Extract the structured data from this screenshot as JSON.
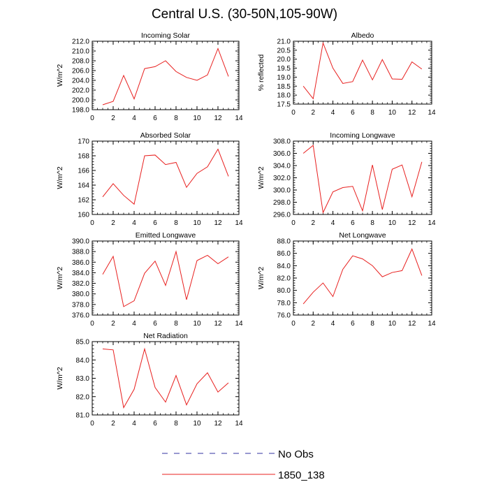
{
  "page": {
    "title": "Central U.S. (30-50N,105-90W)"
  },
  "legend": {
    "placement": "bottom-center",
    "entries": [
      {
        "label": "No Obs",
        "color": "#3232a0",
        "style": "dashed"
      },
      {
        "label": "1850_138",
        "color": "#e8201f",
        "style": "solid"
      }
    ]
  },
  "chart_data": [
    {
      "type": "line",
      "title": "Incoming Solar",
      "ylabel": "W/m^2",
      "xlim": [
        0,
        14
      ],
      "ylim": [
        198,
        212
      ],
      "xticks": [
        "0",
        "2",
        "4",
        "6",
        "8",
        "10",
        "12",
        "14"
      ],
      "yticks": [
        "198.0",
        "200.0",
        "202.0",
        "204.0",
        "206.0",
        "208.0",
        "210.0",
        "212.0"
      ],
      "x": [
        1,
        2,
        3,
        4,
        5,
        6,
        7,
        8,
        9,
        10,
        11,
        12,
        13
      ],
      "series": [
        {
          "name": "1850_138",
          "color": "#e8201f",
          "values": [
            199.0,
            199.7,
            205.0,
            200.2,
            206.4,
            206.8,
            208.0,
            205.8,
            204.6,
            204.0,
            205.1,
            210.5,
            204.8
          ]
        }
      ]
    },
    {
      "type": "line",
      "title": "Albedo",
      "ylabel": "% reflected",
      "xlim": [
        0,
        14
      ],
      "ylim": [
        17.5,
        21.0
      ],
      "xticks": [
        "0",
        "2",
        "4",
        "6",
        "8",
        "10",
        "12",
        "14"
      ],
      "yticks": [
        "17.5",
        "18.0",
        "18.5",
        "19.0",
        "19.5",
        "20.0",
        "20.5",
        "21.0"
      ],
      "x": [
        1,
        2,
        3,
        4,
        5,
        6,
        7,
        8,
        9,
        10,
        11,
        12,
        13
      ],
      "series": [
        {
          "name": "1850_138",
          "color": "#e8201f",
          "values": [
            18.5,
            17.8,
            20.9,
            19.5,
            18.65,
            18.75,
            19.95,
            18.85,
            19.98,
            18.9,
            18.88,
            19.85,
            19.45
          ]
        }
      ]
    },
    {
      "type": "line",
      "title": "Absorbed Solar",
      "ylabel": "W/m^2",
      "xlim": [
        0,
        14
      ],
      "ylim": [
        160,
        170
      ],
      "xticks": [
        "0",
        "2",
        "4",
        "6",
        "8",
        "10",
        "12",
        "14"
      ],
      "yticks": [
        "160",
        "162",
        "164",
        "166",
        "168",
        "170"
      ],
      "x": [
        1,
        2,
        3,
        4,
        5,
        6,
        7,
        8,
        9,
        10,
        11,
        12,
        13
      ],
      "series": [
        {
          "name": "1850_138",
          "color": "#e8201f",
          "values": [
            162.4,
            164.2,
            162.6,
            161.4,
            168.0,
            168.1,
            166.8,
            167.1,
            163.7,
            165.6,
            166.5,
            168.9,
            165.2
          ]
        }
      ]
    },
    {
      "type": "line",
      "title": "Incoming Longwave",
      "ylabel": "W/m^2",
      "xlim": [
        0,
        14
      ],
      "ylim": [
        296,
        308
      ],
      "xticks": [
        "0",
        "2",
        "4",
        "6",
        "8",
        "10",
        "12",
        "14"
      ],
      "yticks": [
        "296.0",
        "298.0",
        "300.0",
        "302.0",
        "304.0",
        "306.0",
        "308.0"
      ],
      "x": [
        1,
        2,
        3,
        4,
        5,
        6,
        7,
        8,
        9,
        10,
        11,
        12,
        13
      ],
      "series": [
        {
          "name": "1850_138",
          "color": "#e8201f",
          "values": [
            306.0,
            307.3,
            296.3,
            299.7,
            300.4,
            300.6,
            296.6,
            304.1,
            296.8,
            303.4,
            304.1,
            298.9,
            304.6
          ]
        }
      ]
    },
    {
      "type": "line",
      "title": "Emitted Longwave",
      "ylabel": "W/m^2",
      "xlim": [
        0,
        14
      ],
      "ylim": [
        376,
        390
      ],
      "xticks": [
        "0",
        "2",
        "4",
        "6",
        "8",
        "10",
        "12",
        "14"
      ],
      "yticks": [
        "376.0",
        "378.0",
        "380.0",
        "382.0",
        "384.0",
        "386.0",
        "388.0",
        "390.0"
      ],
      "x": [
        1,
        2,
        3,
        4,
        5,
        6,
        7,
        8,
        9,
        10,
        11,
        12,
        13
      ],
      "series": [
        {
          "name": "1850_138",
          "color": "#e8201f",
          "values": [
            383.7,
            387.1,
            377.6,
            378.7,
            383.9,
            386.2,
            381.6,
            388.0,
            378.9,
            386.3,
            387.3,
            385.7,
            387.0
          ]
        }
      ]
    },
    {
      "type": "line",
      "title": "Net Longwave",
      "ylabel": "W/m^2",
      "xlim": [
        0,
        14
      ],
      "ylim": [
        76,
        88
      ],
      "xticks": [
        "0",
        "2",
        "4",
        "6",
        "8",
        "10",
        "12",
        "14"
      ],
      "yticks": [
        "76.0",
        "78.0",
        "80.0",
        "82.0",
        "84.0",
        "86.0",
        "88.0"
      ],
      "x": [
        1,
        2,
        3,
        4,
        5,
        6,
        7,
        8,
        9,
        10,
        11,
        12,
        13
      ],
      "series": [
        {
          "name": "1850_138",
          "color": "#e8201f",
          "values": [
            77.8,
            79.7,
            81.2,
            79.0,
            83.4,
            85.6,
            85.1,
            84.0,
            82.2,
            82.9,
            83.2,
            86.7,
            82.4
          ]
        }
      ]
    },
    {
      "type": "line",
      "title": "Net Radiation",
      "ylabel": "W/m^2",
      "xlim": [
        0,
        14
      ],
      "ylim": [
        81,
        85
      ],
      "xticks": [
        "0",
        "2",
        "4",
        "6",
        "8",
        "10",
        "12",
        "14"
      ],
      "yticks": [
        "81.0",
        "82.0",
        "83.0",
        "84.0",
        "85.0"
      ],
      "x": [
        1,
        2,
        3,
        4,
        5,
        6,
        7,
        8,
        9,
        10,
        11,
        12,
        13
      ],
      "series": [
        {
          "name": "1850_138",
          "color": "#e8201f",
          "values": [
            84.6,
            84.55,
            81.4,
            82.4,
            84.6,
            82.5,
            81.7,
            83.15,
            81.55,
            82.7,
            83.3,
            82.25,
            82.75
          ]
        }
      ]
    }
  ]
}
